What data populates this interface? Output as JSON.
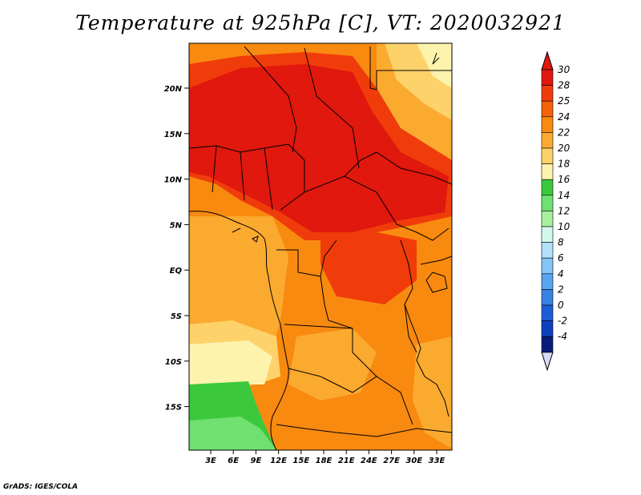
{
  "title": "Temperature at 925hPa [C], VT: 2020032921",
  "footer": "GrADS: IGES/COLA",
  "map": {
    "lat_labels": [
      "20N",
      "15N",
      "10N",
      "5N",
      "EQ",
      "5S",
      "10S",
      "15S"
    ],
    "lon_labels": [
      "3E",
      "6E",
      "9E",
      "12E",
      "15E",
      "18E",
      "21E",
      "24E",
      "27E",
      "30E",
      "33E"
    ]
  },
  "colorbar": {
    "labels": [
      "30",
      "28",
      "25",
      "24",
      "22",
      "20",
      "18",
      "16",
      "14",
      "12",
      "10",
      "8",
      "6",
      "4",
      "2",
      "0",
      "-2",
      "-4"
    ],
    "colors": [
      "#e0180e",
      "#f03c0a",
      "#f5620a",
      "#f88a10",
      "#fbaa30",
      "#fdd26a",
      "#fdf3ad",
      "#3cc83c",
      "#70e070",
      "#a8f0a0",
      "#d2f8ee",
      "#b2e0fa",
      "#84c6f5",
      "#58a4ee",
      "#3a82e4",
      "#1c5ed8",
      "#0e40c0",
      "#081c7c"
    ],
    "max_triangle_color": "#e0180e",
    "min_triangle_color": "#d8d8f8"
  }
}
